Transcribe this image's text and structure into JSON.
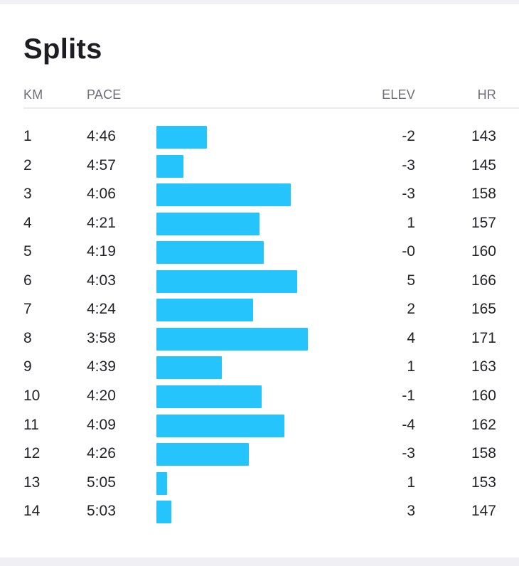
{
  "title": "Splits",
  "headers": {
    "km": "KM",
    "pace": "PACE",
    "elev": "ELEV",
    "hr": "HR"
  },
  "colors": {
    "bar": "#25c4fc",
    "text": "#242428",
    "header": "#6d6d78"
  },
  "pace_scale": {
    "fastest_sec": 225,
    "slowest_sec": 310
  },
  "splits": [
    {
      "km": "1",
      "pace": "4:46",
      "elev": "-2",
      "hr": "143"
    },
    {
      "km": "2",
      "pace": "4:57",
      "elev": "-3",
      "hr": "145"
    },
    {
      "km": "3",
      "pace": "4:06",
      "elev": "-3",
      "hr": "158"
    },
    {
      "km": "4",
      "pace": "4:21",
      "elev": "1",
      "hr": "157"
    },
    {
      "km": "5",
      "pace": "4:19",
      "elev": "-0",
      "hr": "160"
    },
    {
      "km": "6",
      "pace": "4:03",
      "elev": "5",
      "hr": "166"
    },
    {
      "km": "7",
      "pace": "4:24",
      "elev": "2",
      "hr": "165"
    },
    {
      "km": "8",
      "pace": "3:58",
      "elev": "4",
      "hr": "171"
    },
    {
      "km": "9",
      "pace": "4:39",
      "elev": "1",
      "hr": "163"
    },
    {
      "km": "10",
      "pace": "4:20",
      "elev": "-1",
      "hr": "160"
    },
    {
      "km": "11",
      "pace": "4:09",
      "elev": "-4",
      "hr": "162"
    },
    {
      "km": "12",
      "pace": "4:26",
      "elev": "-3",
      "hr": "158"
    },
    {
      "km": "13",
      "pace": "5:05",
      "elev": "1",
      "hr": "153"
    },
    {
      "km": "14",
      "pace": "5:03",
      "elev": "3",
      "hr": "147"
    }
  ]
}
